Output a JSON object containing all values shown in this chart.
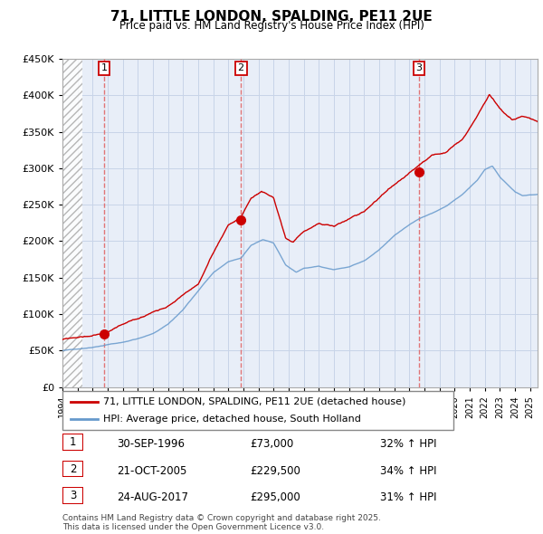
{
  "title": "71, LITTLE LONDON, SPALDING, PE11 2UE",
  "subtitle": "Price paid vs. HM Land Registry's House Price Index (HPI)",
  "legend_line1": "71, LITTLE LONDON, SPALDING, PE11 2UE (detached house)",
  "legend_line2": "HPI: Average price, detached house, South Holland",
  "sale1_date": "30-SEP-1996",
  "sale1_price": "£73,000",
  "sale1_hpi": "32% ↑ HPI",
  "sale2_date": "21-OCT-2005",
  "sale2_price": "£229,500",
  "sale2_hpi": "34% ↑ HPI",
  "sale3_date": "24-AUG-2017",
  "sale3_price": "£295,000",
  "sale3_hpi": "31% ↑ HPI",
  "footer": "Contains HM Land Registry data © Crown copyright and database right 2025.\nThis data is licensed under the Open Government Licence v3.0.",
  "price_line_color": "#cc0000",
  "hpi_line_color": "#6699cc",
  "sale_marker_color": "#cc0000",
  "vline_color": "#e06060",
  "grid_color": "#c8d4e8",
  "plot_bg_color": "#e8eef8",
  "ylim": [
    0,
    450000
  ],
  "yticks": [
    0,
    50000,
    100000,
    150000,
    200000,
    250000,
    300000,
    350000,
    400000,
    450000
  ],
  "sale1_year": 1996.75,
  "sale2_year": 2005.83,
  "sale3_year": 2017.65,
  "xmin": 1994.0,
  "xmax": 2025.5,
  "hatch_end": 1995.3
}
